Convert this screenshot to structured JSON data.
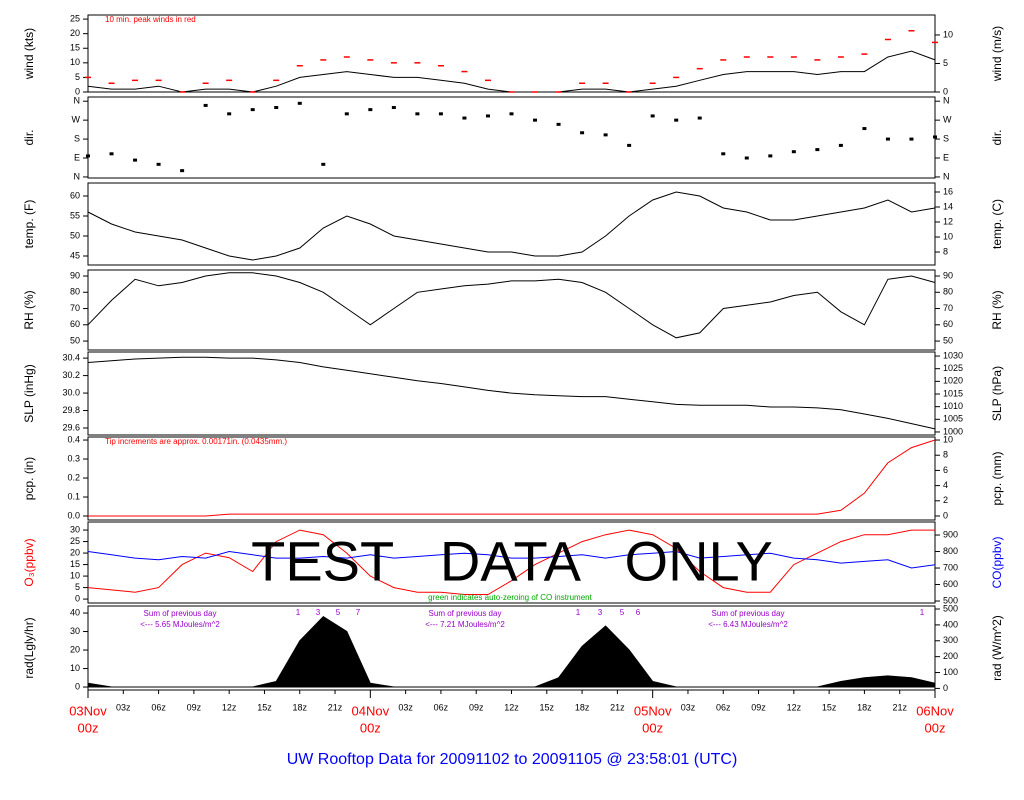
{
  "title": "UW Rooftop Data for 20091102  to  20091105 @ 23:58:01  (UTC)",
  "chart_data": [
    {
      "type": "line",
      "ylabel": "wind (kts)",
      "y2label": "wind (m/s)",
      "annotation": "10 min. peak winds in red",
      "xlim": [
        0,
        72
      ],
      "x": [
        0,
        2,
        4,
        6,
        8,
        10,
        12,
        14,
        16,
        18,
        20,
        22,
        24,
        26,
        28,
        30,
        32,
        34,
        36,
        38,
        40,
        42,
        44,
        46,
        48,
        50,
        52,
        54,
        56,
        58,
        60,
        62,
        64,
        66,
        68,
        70,
        72
      ],
      "ylim": [
        0,
        26.4
      ],
      "yticks": [
        0,
        5,
        10,
        15,
        20,
        25
      ],
      "y2lim": [
        0,
        13.5
      ],
      "y2ticks": [
        0,
        5,
        10
      ],
      "series": [
        {
          "color": "#000000",
          "values": [
            2,
            1,
            1,
            2,
            0,
            1,
            1,
            0,
            2,
            5,
            6,
            7,
            6,
            5,
            5,
            4,
            3,
            1,
            0,
            0,
            0,
            1,
            1,
            0,
            1,
            2,
            4,
            6,
            7,
            7,
            7,
            6,
            7,
            7,
            12,
            14,
            11
          ]
        },
        {
          "color": "#ff0000",
          "marker": "dash",
          "values": [
            5,
            3,
            4,
            4,
            0,
            3,
            4,
            0,
            4,
            9,
            11,
            12,
            11,
            10,
            10,
            9,
            7,
            4,
            0,
            0,
            0,
            3,
            3,
            0,
            3,
            5,
            8,
            11,
            12,
            12,
            12,
            11,
            12,
            13,
            18,
            21,
            17
          ]
        }
      ]
    },
    {
      "type": "scatter",
      "ylabel": "dir.",
      "y2label": "dir.",
      "xlim": [
        0,
        72
      ],
      "x": [
        0,
        2,
        4,
        6,
        8,
        10,
        12,
        14,
        16,
        18,
        20,
        22,
        24,
        26,
        28,
        30,
        32,
        34,
        36,
        38,
        40,
        42,
        44,
        46,
        48,
        50,
        52,
        54,
        56,
        58,
        60,
        62,
        64,
        66,
        68,
        70,
        72
      ],
      "ylim": [
        -5,
        380
      ],
      "yticks": [
        {
          "value": 0,
          "label": "N"
        },
        {
          "value": 90,
          "label": "E"
        },
        {
          "value": 180,
          "label": "S"
        },
        {
          "value": 270,
          "label": "W"
        },
        {
          "value": 360,
          "label": "N"
        }
      ],
      "y2ticks": [
        {
          "value": 0,
          "label": "N"
        },
        {
          "value": 90,
          "label": "E"
        },
        {
          "value": 180,
          "label": "S"
        },
        {
          "value": 270,
          "label": "W"
        },
        {
          "value": 360,
          "label": "N"
        }
      ],
      "series": [
        {
          "color": "#000000",
          "values": [
            100,
            110,
            80,
            60,
            30,
            340,
            300,
            320,
            330,
            350,
            60,
            300,
            320,
            330,
            300,
            300,
            280,
            290,
            300,
            270,
            250,
            210,
            200,
            150,
            290,
            270,
            280,
            110,
            90,
            100,
            120,
            130,
            150,
            230,
            180,
            180,
            190
          ]
        }
      ]
    },
    {
      "type": "line",
      "ylabel": "temp. (F)",
      "y2label": "temp. (C)",
      "xlim": [
        0,
        72
      ],
      "x": [
        0,
        2,
        4,
        6,
        8,
        10,
        12,
        14,
        16,
        18,
        20,
        22,
        24,
        26,
        28,
        30,
        32,
        34,
        36,
        38,
        40,
        42,
        44,
        46,
        48,
        50,
        52,
        54,
        56,
        58,
        60,
        62,
        64,
        66,
        68,
        70,
        72
      ],
      "ylim": [
        42.75,
        63.25
      ],
      "yticks": [
        45,
        50,
        55,
        60
      ],
      "y2lim": [
        6.27,
        17.2
      ],
      "y2ticks": [
        8,
        10,
        12,
        14,
        16
      ],
      "series": [
        {
          "color": "#000000",
          "values": [
            56,
            53,
            51,
            50,
            49,
            47,
            45,
            44,
            45,
            47,
            52,
            55,
            53,
            50,
            49,
            48,
            47,
            46,
            46,
            45,
            45,
            46,
            50,
            55,
            59,
            61,
            60,
            57,
            56,
            54,
            54,
            55,
            56,
            57,
            59,
            56,
            57
          ]
        }
      ]
    },
    {
      "type": "line",
      "ylabel": "RH (%)",
      "y2label": "RH (%)",
      "xlim": [
        0,
        72
      ],
      "x": [
        0,
        2,
        4,
        6,
        8,
        10,
        12,
        14,
        16,
        18,
        20,
        22,
        24,
        26,
        28,
        30,
        32,
        34,
        36,
        38,
        40,
        42,
        44,
        46,
        48,
        50,
        52,
        54,
        56,
        58,
        60,
        62,
        64,
        66,
        68,
        70,
        72
      ],
      "ylim": [
        44.5,
        93.7
      ],
      "yticks": [
        50,
        60,
        70,
        80,
        90
      ],
      "y2lim": [
        44.5,
        93.7
      ],
      "y2ticks": [
        50,
        60,
        70,
        80,
        90
      ],
      "series": [
        {
          "color": "#000000",
          "values": [
            60,
            75,
            88,
            84,
            86,
            90,
            92,
            92,
            90,
            86,
            80,
            70,
            60,
            70,
            80,
            82,
            84,
            85,
            87,
            87,
            88,
            86,
            80,
            70,
            60,
            52,
            55,
            70,
            72,
            74,
            78,
            80,
            68,
            60,
            88,
            90,
            86
          ]
        }
      ]
    },
    {
      "type": "line",
      "ylabel": "SLP (inHg)",
      "y2label": "SLP (hPa)",
      "xlim": [
        0,
        72
      ],
      "x": [
        0,
        2,
        4,
        6,
        8,
        10,
        12,
        14,
        16,
        18,
        20,
        22,
        24,
        26,
        28,
        30,
        32,
        34,
        36,
        38,
        40,
        42,
        44,
        46,
        48,
        50,
        52,
        54,
        56,
        58,
        60,
        62,
        64,
        66,
        68,
        70,
        72
      ],
      "ylim": [
        29.52,
        30.47
      ],
      "yticks": [
        29.6,
        29.8,
        {
          "value": 30,
          "label": "30.0"
        },
        30.2,
        30.4
      ],
      "y2lim": [
        998.8,
        1031.6
      ],
      "y2ticks": [
        1000,
        1005,
        1010,
        1015,
        1020,
        1025,
        1030
      ],
      "series": [
        {
          "color": "#000000",
          "values": [
            30.35,
            30.37,
            30.39,
            30.4,
            30.41,
            30.41,
            30.4,
            30.4,
            30.38,
            30.35,
            30.3,
            30.26,
            30.22,
            30.18,
            30.14,
            30.11,
            30.07,
            30.03,
            30.0,
            29.98,
            29.97,
            29.96,
            29.96,
            29.93,
            29.9,
            29.87,
            29.86,
            29.86,
            29.86,
            29.84,
            29.84,
            29.83,
            29.81,
            29.76,
            29.71,
            29.65,
            29.59
          ]
        }
      ]
    },
    {
      "type": "line",
      "ylabel": "pcp. (in)",
      "y2label": "pcp. (mm)",
      "annotation": "Tip increments are approx. 0.00171in. (0.0435mm.)",
      "xlim": [
        0,
        72
      ],
      "x": [
        0,
        2,
        4,
        6,
        8,
        10,
        12,
        14,
        16,
        18,
        20,
        22,
        24,
        26,
        28,
        30,
        32,
        34,
        36,
        38,
        40,
        42,
        44,
        46,
        48,
        50,
        52,
        54,
        56,
        58,
        60,
        62,
        64,
        66,
        68,
        70,
        72
      ],
      "ylim": [
        -0.021,
        0.416
      ],
      "yticks": [
        {
          "value": 0,
          "label": "0.0"
        },
        0.1,
        0.2,
        0.3,
        0.4
      ],
      "y2lim": [
        -0.53,
        10.4
      ],
      "y2ticks": [
        0,
        2,
        4,
        6,
        8,
        10
      ],
      "series": [
        {
          "color": "#ff0000",
          "values": [
            0,
            0,
            0,
            0,
            0,
            0,
            0.01,
            0.01,
            0.01,
            0.01,
            0.01,
            0.01,
            0.01,
            0.01,
            0.01,
            0.01,
            0.01,
            0.01,
            0.01,
            0.01,
            0.01,
            0.01,
            0.01,
            0.01,
            0.01,
            0.01,
            0.01,
            0.01,
            0.01,
            0.01,
            0.01,
            0.01,
            0.03,
            0.12,
            0.28,
            0.36,
            0.4
          ]
        }
      ]
    },
    {
      "type": "line",
      "ylabel": "O₃(ppbv)",
      "y2label": "CO(ppbv)",
      "watermark": "TEST   DATA   ONLY",
      "note": "green indicates auto-zeroing of CO instrument",
      "xlim": [
        0,
        72
      ],
      "x": [
        0,
        2,
        4,
        6,
        8,
        10,
        12,
        14,
        16,
        18,
        20,
        22,
        24,
        26,
        28,
        30,
        32,
        34,
        36,
        38,
        40,
        42,
        44,
        46,
        48,
        50,
        52,
        54,
        56,
        58,
        60,
        62,
        64,
        66,
        68,
        70,
        72
      ],
      "ylim": [
        -1.7,
        33.5
      ],
      "yticks": [
        0,
        5,
        10,
        15,
        20,
        25,
        30
      ],
      "y2lim": [
        488,
        979
      ],
      "y2ticks": [
        500,
        600,
        700,
        800,
        900
      ],
      "series": [
        {
          "color": "#ff0000",
          "values": [
            5,
            4,
            3,
            5,
            15,
            20,
            18,
            12,
            25,
            30,
            28,
            20,
            10,
            5,
            3,
            3,
            2,
            2,
            8,
            15,
            20,
            25,
            28,
            30,
            28,
            22,
            12,
            5,
            3,
            3,
            15,
            20,
            25,
            28,
            28,
            30,
            30
          ]
        },
        {
          "color": "#0000ff",
          "axis": "y2",
          "values": [
            800,
            780,
            760,
            750,
            770,
            760,
            800,
            780,
            760,
            760,
            770,
            760,
            780,
            760,
            770,
            780,
            790,
            780,
            760,
            760,
            770,
            780,
            760,
            780,
            790,
            800,
            760,
            770,
            780,
            790,
            760,
            750,
            730,
            740,
            750,
            700,
            720
          ]
        }
      ]
    },
    {
      "type": "area",
      "ylabel": "rad(Lgly/hr)",
      "y2label": "rad (W/m^2)",
      "daily_sums": [
        {
          "label": "Sum of previous day",
          "total": "<--- 5.65 MJoules/m^2"
        },
        {
          "label": "Sum of previous day",
          "total": "<--- 7.21 MJoules/m^2"
        },
        {
          "label": "Sum of previous day",
          "total": "<--- 6.43 MJoules/m^2"
        }
      ],
      "hour_marks": [
        [
          "1",
          "3",
          "5",
          "7"
        ],
        [
          "1",
          "3",
          "5",
          "6"
        ],
        [
          "1"
        ]
      ],
      "xlim": [
        0,
        72
      ],
      "x": [
        0,
        2,
        4,
        6,
        8,
        10,
        12,
        14,
        16,
        18,
        20,
        22,
        24,
        26,
        28,
        30,
        32,
        34,
        36,
        38,
        40,
        42,
        44,
        46,
        48,
        50,
        52,
        54,
        56,
        58,
        60,
        62,
        64,
        66,
        68,
        70,
        72
      ],
      "ylim": [
        -1.6,
        43.8
      ],
      "yticks": [
        0,
        10,
        20,
        30,
        40
      ],
      "y2lim": [
        -10,
        519
      ],
      "y2ticks": [
        0,
        100,
        200,
        300,
        400,
        500
      ],
      "xticks": [
        {
          "value": 3,
          "label": "03z"
        },
        {
          "value": 6,
          "label": "06z"
        },
        {
          "value": 9,
          "label": "09z"
        },
        {
          "value": 12,
          "label": "12z"
        },
        {
          "value": 15,
          "label": "15z"
        },
        {
          "value": 18,
          "label": "18z"
        },
        {
          "value": 21,
          "label": "21z"
        },
        {
          "value": 27,
          "label": "03z"
        },
        {
          "value": 30,
          "label": "06z"
        },
        {
          "value": 33,
          "label": "09z"
        },
        {
          "value": 36,
          "label": "12z"
        },
        {
          "value": 39,
          "label": "15z"
        },
        {
          "value": 42,
          "label": "18z"
        },
        {
          "value": 45,
          "label": "21z"
        },
        {
          "value": 51,
          "label": "03z"
        },
        {
          "value": 54,
          "label": "06z"
        },
        {
          "value": 57,
          "label": "09z"
        },
        {
          "value": 60,
          "label": "12z"
        },
        {
          "value": 63,
          "label": "15z"
        },
        {
          "value": 66,
          "label": "18z"
        },
        {
          "value": 69,
          "label": "21z"
        }
      ],
      "day_ticks": [
        {
          "value": 0,
          "date": "03Nov",
          "label": "00z"
        },
        {
          "value": 24,
          "date": "04Nov",
          "label": "00z"
        },
        {
          "value": 48,
          "date": "05Nov",
          "label": "00z"
        },
        {
          "value": 72,
          "date": "06Nov",
          "label": "00z"
        }
      ],
      "series": [
        {
          "color": "#000000",
          "values": [
            2,
            0,
            0,
            0,
            0,
            0,
            0,
            0,
            3,
            25,
            38,
            30,
            2,
            0,
            0,
            0,
            0,
            0,
            0,
            0,
            5,
            22,
            33,
            20,
            3,
            0,
            0,
            0,
            0,
            0,
            0,
            0,
            3,
            5,
            6,
            5,
            2
          ]
        }
      ]
    }
  ]
}
